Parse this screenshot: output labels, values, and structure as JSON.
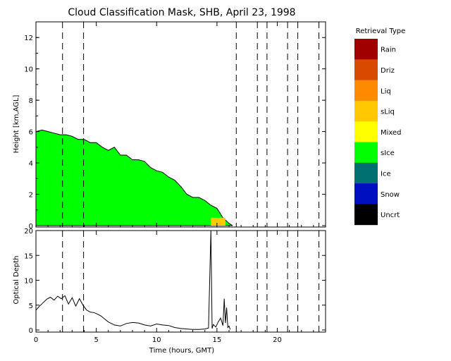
{
  "chart_data": [
    {
      "type": "heatmap",
      "title": "Cloud Classification Mask, SHB, April 23, 1998",
      "ylabel": "Height [km,AGL]",
      "xlim": [
        0,
        24
      ],
      "ylim": [
        0,
        13
      ],
      "y_ticks": [
        "0",
        "2",
        "4",
        "6",
        "8",
        "10",
        "12"
      ],
      "dashed_time_markers_hours": [
        2.2,
        3.95,
        16.6,
        18.35,
        19.15,
        20.85,
        21.7,
        23.45
      ],
      "legend_title": "Retrieval Type",
      "legend": [
        {
          "label": "Rain",
          "color": "#a00000"
        },
        {
          "label": "Driz",
          "color": "#d84a00"
        },
        {
          "label": "Liq",
          "color": "#ff8a00"
        },
        {
          "label": "sLiq",
          "color": "#ffc800"
        },
        {
          "label": "Mixed",
          "color": "#ffff00"
        },
        {
          "label": "sIce",
          "color": "#00ff00"
        },
        {
          "label": "Ice",
          "color": "#007070"
        },
        {
          "label": "Snow",
          "color": "#0010c0"
        },
        {
          "label": "Uncrt",
          "color": "#000000"
        }
      ],
      "cloud_top_km": {
        "category": "sIce",
        "hours": [
          0,
          0.5,
          1.0,
          1.5,
          2.0,
          2.5,
          3.0,
          3.5,
          4.0,
          4.5,
          5.0,
          5.5,
          6.0,
          6.5,
          7.0,
          7.5,
          8.0,
          8.5,
          9.0,
          9.5,
          10.0,
          10.5,
          11.0,
          11.5,
          12.0,
          12.5,
          13.0,
          13.5,
          14.0,
          14.5,
          15.0,
          15.5,
          16.0,
          16.3
        ],
        "top": [
          6.0,
          6.1,
          6.0,
          5.9,
          5.8,
          5.8,
          5.7,
          5.5,
          5.5,
          5.3,
          5.3,
          5.0,
          4.8,
          5.0,
          4.5,
          4.5,
          4.2,
          4.2,
          4.1,
          3.7,
          3.5,
          3.4,
          3.1,
          2.9,
          2.5,
          2.0,
          1.8,
          1.8,
          1.6,
          1.3,
          1.1,
          0.5,
          0.15,
          0.0
        ]
      },
      "sliq_patch": {
        "category": "sLiq",
        "hours": [
          14.5,
          15.7
        ],
        "top_km": 0.5
      }
    },
    {
      "type": "line",
      "xlabel": "Time (hours, GMT)",
      "ylabel": "Optical Depth",
      "xlim": [
        0,
        24
      ],
      "ylim": [
        0,
        20
      ],
      "x_ticks": [
        "0",
        "5",
        "10",
        "15",
        "20"
      ],
      "y_ticks": [
        "0",
        "5",
        "10",
        "15",
        "20"
      ],
      "series": [
        {
          "x": [
            0,
            0.3,
            0.6,
            0.9,
            1.2,
            1.5,
            1.8,
            2.1,
            2.4,
            2.7,
            3.0,
            3.3,
            3.6,
            3.9,
            4.2,
            4.5,
            4.8,
            5.1,
            5.4,
            5.7,
            6.0,
            6.5,
            7.0,
            7.5,
            8.0,
            8.5,
            9.0,
            9.5,
            10.0,
            10.5,
            11.0,
            11.5,
            12.0,
            12.5,
            13.0,
            13.5,
            14.0,
            14.3,
            14.5,
            14.6,
            14.7,
            14.9,
            15.1,
            15.3,
            15.5,
            15.6,
            15.7,
            15.8,
            15.9,
            16.0,
            16.1
          ],
          "y": [
            4,
            4.8,
            5.5,
            6.2,
            6.6,
            6.0,
            6.8,
            6.3,
            6.9,
            5.2,
            6.5,
            4.8,
            6.3,
            5.0,
            4.0,
            3.6,
            3.5,
            3.2,
            2.8,
            2.2,
            1.6,
            1.0,
            0.8,
            1.3,
            1.5,
            1.4,
            1.0,
            0.8,
            1.2,
            1.0,
            0.9,
            0.5,
            0.3,
            0.2,
            0.1,
            0.1,
            0.2,
            0.4,
            20.0,
            0.3,
            1.1,
            0.6,
            1.6,
            2.4,
            0.9,
            6.3,
            1.4,
            4.5,
            0.5,
            0.8,
            0.1
          ]
        }
      ]
    }
  ]
}
